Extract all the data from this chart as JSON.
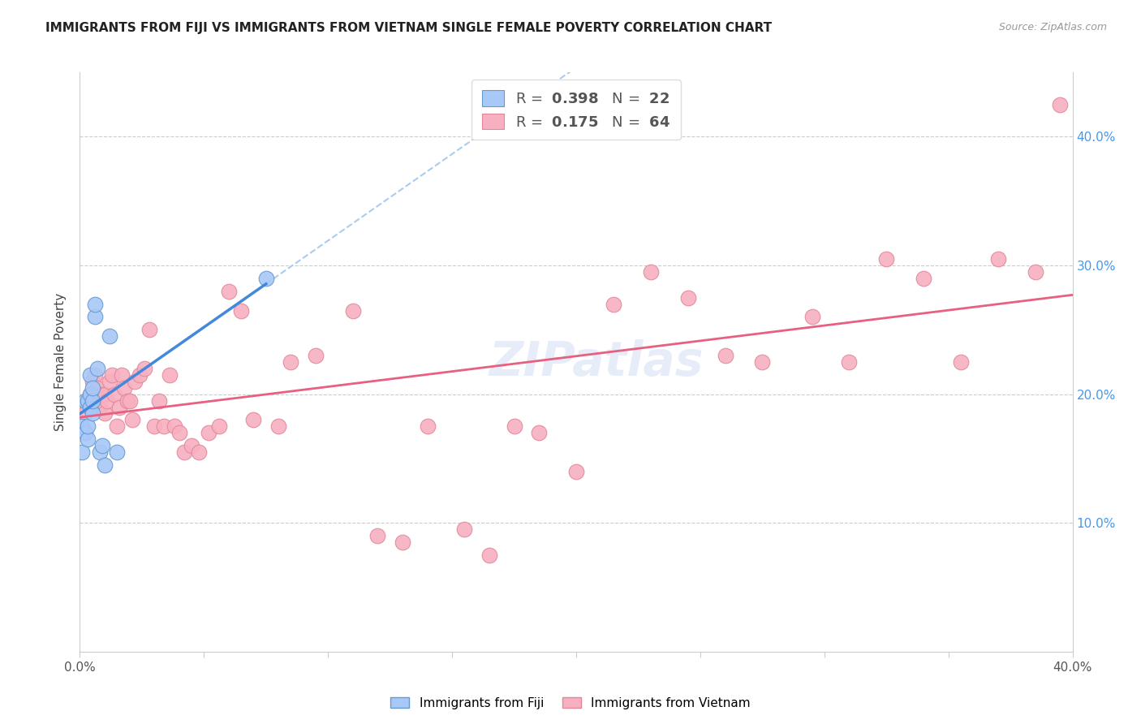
{
  "title": "IMMIGRANTS FROM FIJI VS IMMIGRANTS FROM VIETNAM SINGLE FEMALE POVERTY CORRELATION CHART",
  "source": "Source: ZipAtlas.com",
  "ylabel": "Single Female Poverty",
  "xlim": [
    0.0,
    0.4
  ],
  "ylim": [
    0.0,
    0.45
  ],
  "fiji_color": "#a8c8f8",
  "fiji_edge_color": "#6699cc",
  "vietnam_color": "#f8b0c0",
  "vietnam_edge_color": "#e08898",
  "fiji_R": 0.398,
  "fiji_N": 22,
  "vietnam_R": 0.175,
  "vietnam_N": 64,
  "fiji_line_color": "#4488dd",
  "vietnam_line_color": "#e86080",
  "fiji_dashed_color": "#aaccee",
  "watermark": "ZIPatlas",
  "fiji_x": [
    0.001,
    0.001,
    0.002,
    0.002,
    0.003,
    0.003,
    0.003,
    0.004,
    0.004,
    0.004,
    0.005,
    0.005,
    0.005,
    0.006,
    0.006,
    0.007,
    0.008,
    0.009,
    0.01,
    0.012,
    0.015,
    0.075
  ],
  "fiji_y": [
    0.155,
    0.175,
    0.17,
    0.195,
    0.165,
    0.175,
    0.195,
    0.19,
    0.2,
    0.215,
    0.185,
    0.195,
    0.205,
    0.26,
    0.27,
    0.22,
    0.155,
    0.16,
    0.145,
    0.245,
    0.155,
    0.29
  ],
  "vietnam_x": [
    0.002,
    0.003,
    0.004,
    0.005,
    0.006,
    0.007,
    0.008,
    0.009,
    0.01,
    0.01,
    0.011,
    0.012,
    0.013,
    0.014,
    0.015,
    0.016,
    0.017,
    0.018,
    0.019,
    0.02,
    0.021,
    0.022,
    0.024,
    0.026,
    0.028,
    0.03,
    0.032,
    0.034,
    0.036,
    0.038,
    0.04,
    0.042,
    0.045,
    0.048,
    0.052,
    0.056,
    0.06,
    0.065,
    0.07,
    0.08,
    0.085,
    0.095,
    0.11,
    0.12,
    0.13,
    0.14,
    0.155,
    0.165,
    0.175,
    0.185,
    0.2,
    0.215,
    0.23,
    0.245,
    0.26,
    0.275,
    0.295,
    0.31,
    0.325,
    0.34,
    0.355,
    0.37,
    0.385,
    0.395
  ],
  "vietnam_y": [
    0.185,
    0.195,
    0.2,
    0.21,
    0.215,
    0.205,
    0.19,
    0.2,
    0.185,
    0.2,
    0.195,
    0.21,
    0.215,
    0.2,
    0.175,
    0.19,
    0.215,
    0.205,
    0.195,
    0.195,
    0.18,
    0.21,
    0.215,
    0.22,
    0.25,
    0.175,
    0.195,
    0.175,
    0.215,
    0.175,
    0.17,
    0.155,
    0.16,
    0.155,
    0.17,
    0.175,
    0.28,
    0.265,
    0.18,
    0.175,
    0.225,
    0.23,
    0.265,
    0.09,
    0.085,
    0.175,
    0.095,
    0.075,
    0.175,
    0.17,
    0.14,
    0.27,
    0.295,
    0.275,
    0.23,
    0.225,
    0.26,
    0.225,
    0.305,
    0.29,
    0.225,
    0.305,
    0.295,
    0.425
  ]
}
